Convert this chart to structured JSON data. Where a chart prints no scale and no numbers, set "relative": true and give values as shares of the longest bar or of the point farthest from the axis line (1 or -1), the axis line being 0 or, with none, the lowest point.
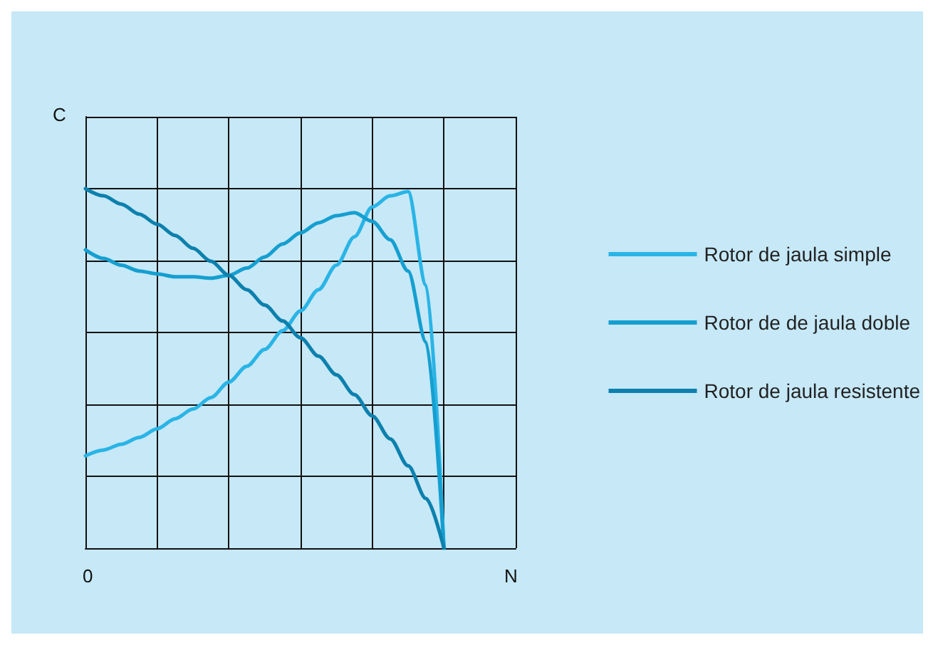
{
  "chart_data": {
    "type": "line",
    "relative": true,
    "xlabel": "N",
    "ylabel": "C",
    "annotations": [
      "0"
    ],
    "grid": true,
    "legend": "right",
    "marker": "none",
    "line_style": "solid",
    "categories": [
      null,
      null,
      null,
      null,
      null,
      null,
      null,
      null,
      null,
      null,
      null,
      null,
      null,
      null,
      null,
      null,
      null,
      null,
      null,
      null,
      null
    ],
    "series": [
      {
        "name": "Rotor de jaula simple",
        "color": "#2ab4e6",
        "values": [
          0.257,
          0.273,
          0.289,
          0.308,
          0.332,
          0.36,
          0.387,
          0.419,
          0.462,
          0.506,
          0.553,
          0.605,
          0.66,
          0.719,
          0.787,
          0.866,
          0.949,
          0.98,
          0.992,
          0.731,
          0
        ]
      },
      {
        "name": "Rotor de de jaula doble",
        "color": "#159fd0",
        "values": [
          0.83,
          0.806,
          0.787,
          0.771,
          0.763,
          0.755,
          0.755,
          0.751,
          0.759,
          0.779,
          0.81,
          0.846,
          0.877,
          0.905,
          0.925,
          0.933,
          0.909,
          0.858,
          0.771,
          0.573,
          0
        ]
      },
      {
        "name": "Rotor de jaula resistente",
        "color": "#0d80ad",
        "values": [
          1,
          0.98,
          0.957,
          0.929,
          0.901,
          0.87,
          0.834,
          0.798,
          0.759,
          0.719,
          0.676,
          0.632,
          0.585,
          0.534,
          0.482,
          0.427,
          0.368,
          0.304,
          0.229,
          0.138,
          0
        ]
      }
    ]
  }
}
